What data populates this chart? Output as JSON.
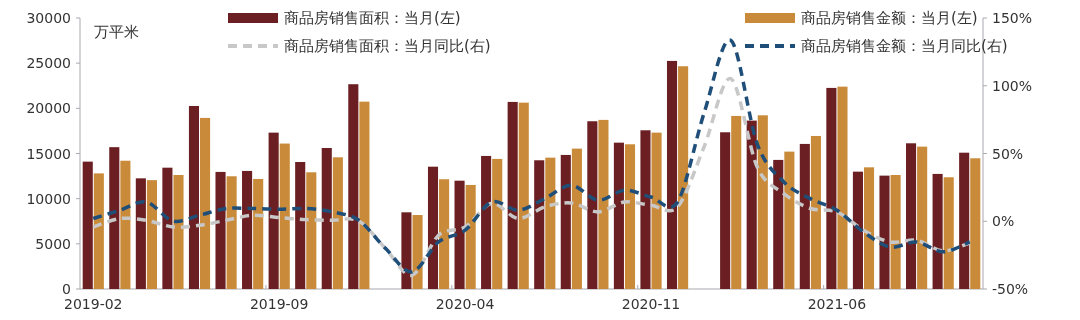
{
  "chart_data": {
    "type": "bar",
    "categories": [
      "2019-02",
      null,
      null,
      null,
      null,
      null,
      null,
      "2019-09",
      null,
      null,
      null,
      null,
      null,
      null,
      "2020-04",
      null,
      null,
      null,
      null,
      null,
      null,
      "2020-11",
      null,
      null,
      null,
      null,
      null,
      null,
      "2021-06",
      null,
      null,
      null,
      null,
      null
    ],
    "series": [
      {
        "name": "商品房销售面积：当月(左)",
        "color": "#6b1f22",
        "values": [
          14100,
          15700,
          12250,
          13430,
          20260,
          12960,
          13070,
          17310,
          14060,
          15610,
          22670,
          null,
          8490,
          13540,
          11990,
          14730,
          20710,
          14250,
          14840,
          18570,
          16200,
          17570,
          25250,
          null,
          17350,
          18640,
          14290,
          16060,
          22260,
          12990,
          12550,
          16130,
          12740,
          15090
        ]
      },
      {
        "name": "商品房销售金额：当月(左)",
        "color": "#c98b3a",
        "values": [
          12800,
          14200,
          12050,
          12620,
          18940,
          12480,
          12180,
          16100,
          12920,
          14580,
          20740,
          null,
          8190,
          12150,
          11520,
          14400,
          20630,
          14540,
          15540,
          18720,
          16020,
          17310,
          24660,
          null,
          19160,
          19230,
          15210,
          16940,
          22400,
          13470,
          12620,
          15760,
          12370,
          14470
        ]
      },
      {
        "name": "商品房销售面积：当月同比(右)",
        "type": "line",
        "axis": "y2",
        "line_style": "dashed",
        "color": "#c8c8c8",
        "values": [
          -4.2,
          2.0,
          0.7,
          -4.2,
          -3,
          0.7,
          4.4,
          2.7,
          1.2,
          0.7,
          0.2,
          -20,
          -39.9,
          -10.3,
          -4.2,
          13.1,
          2,
          10.6,
          13.5,
          6.9,
          14.2,
          11.8,
          10.6,
          55,
          105.3,
          40,
          20.4,
          9.4,
          6.9,
          -6.6,
          -15.3,
          -14,
          -21.9,
          -16
        ]
      },
      {
        "name": "商品房销售金额：当月同比(右)",
        "type": "line",
        "axis": "y2",
        "line_style": "dashed",
        "color": "#1f4e79",
        "values": [
          2.0,
          8.1,
          14.2,
          0.2,
          4.4,
          9.4,
          9.4,
          8.9,
          9.4,
          6.9,
          0.7,
          -20,
          -37.4,
          -15.3,
          -6.6,
          14.2,
          8.1,
          16.7,
          26.6,
          15.5,
          22.9,
          17.9,
          14.2,
          80,
          133.6,
          57,
          29,
          16.7,
          8.1,
          -7.9,
          -19,
          -15.3,
          -22.6,
          -15.3
        ]
      }
    ],
    "ylim": [
      0,
      30000
    ],
    "yticks": [
      0,
      5000,
      10000,
      15000,
      20000,
      25000,
      30000
    ],
    "y2lim": [
      -50,
      150
    ],
    "y2ticks": [
      {
        "value": -50,
        "label": "-50%"
      },
      {
        "value": 0,
        "label": "0%"
      },
      {
        "value": 50,
        "label": "50%"
      },
      {
        "value": 100,
        "label": "100%"
      },
      {
        "value": 150,
        "label": "150%"
      }
    ],
    "annotations": [
      "万平米"
    ],
    "legend": "top",
    "grid": false
  }
}
